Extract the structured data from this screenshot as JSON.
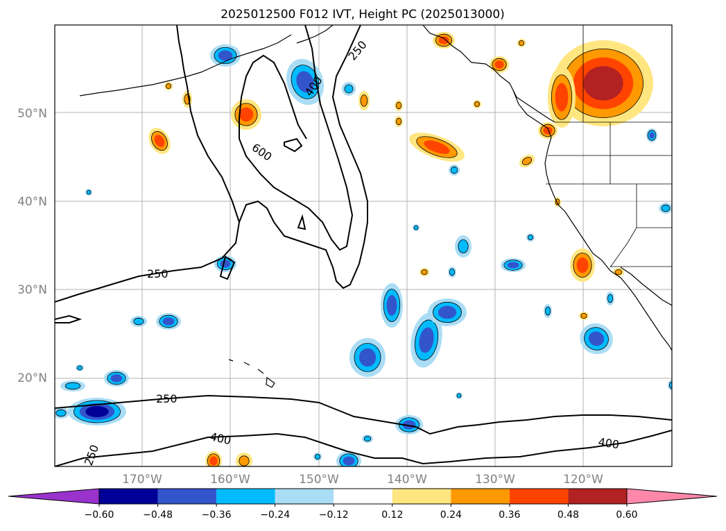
{
  "title": "2025012500 F012 IVT, Height PC (2025013000)",
  "map": {
    "lat_labels": [
      "50°N",
      "40°N",
      "30°N",
      "20°N"
    ],
    "lon_labels": [
      "170°W",
      "160°W",
      "150°W",
      "140°W",
      "130°W",
      "120°W"
    ],
    "grid_color": "#b0b0b0",
    "contour_labels": [
      "250",
      "400",
      "600",
      "250",
      "250",
      "400",
      "250",
      "400"
    ]
  },
  "colorbar": {
    "ticks": [
      "−0.60",
      "−0.48",
      "−0.36",
      "−0.24",
      "−0.12",
      "0.12",
      "0.24",
      "0.36",
      "0.48",
      "0.60"
    ],
    "colors": [
      "#9933cc",
      "#000099",
      "#3355cc",
      "#00bbff",
      "#aaddf5",
      "#ffffff",
      "#ffe680",
      "#ff9900",
      "#ff4400",
      "#b22222",
      "#ff88aa"
    ]
  },
  "palette": {
    "neg_light": "#aaddf5",
    "neg_mid": "#00bbff",
    "neg_dark": "#3355cc",
    "neg_deep": "#000099",
    "pos_light": "#ffe680",
    "pos_mid": "#ff9900",
    "pos_dark": "#ff4400",
    "pos_deep": "#b22222"
  }
}
